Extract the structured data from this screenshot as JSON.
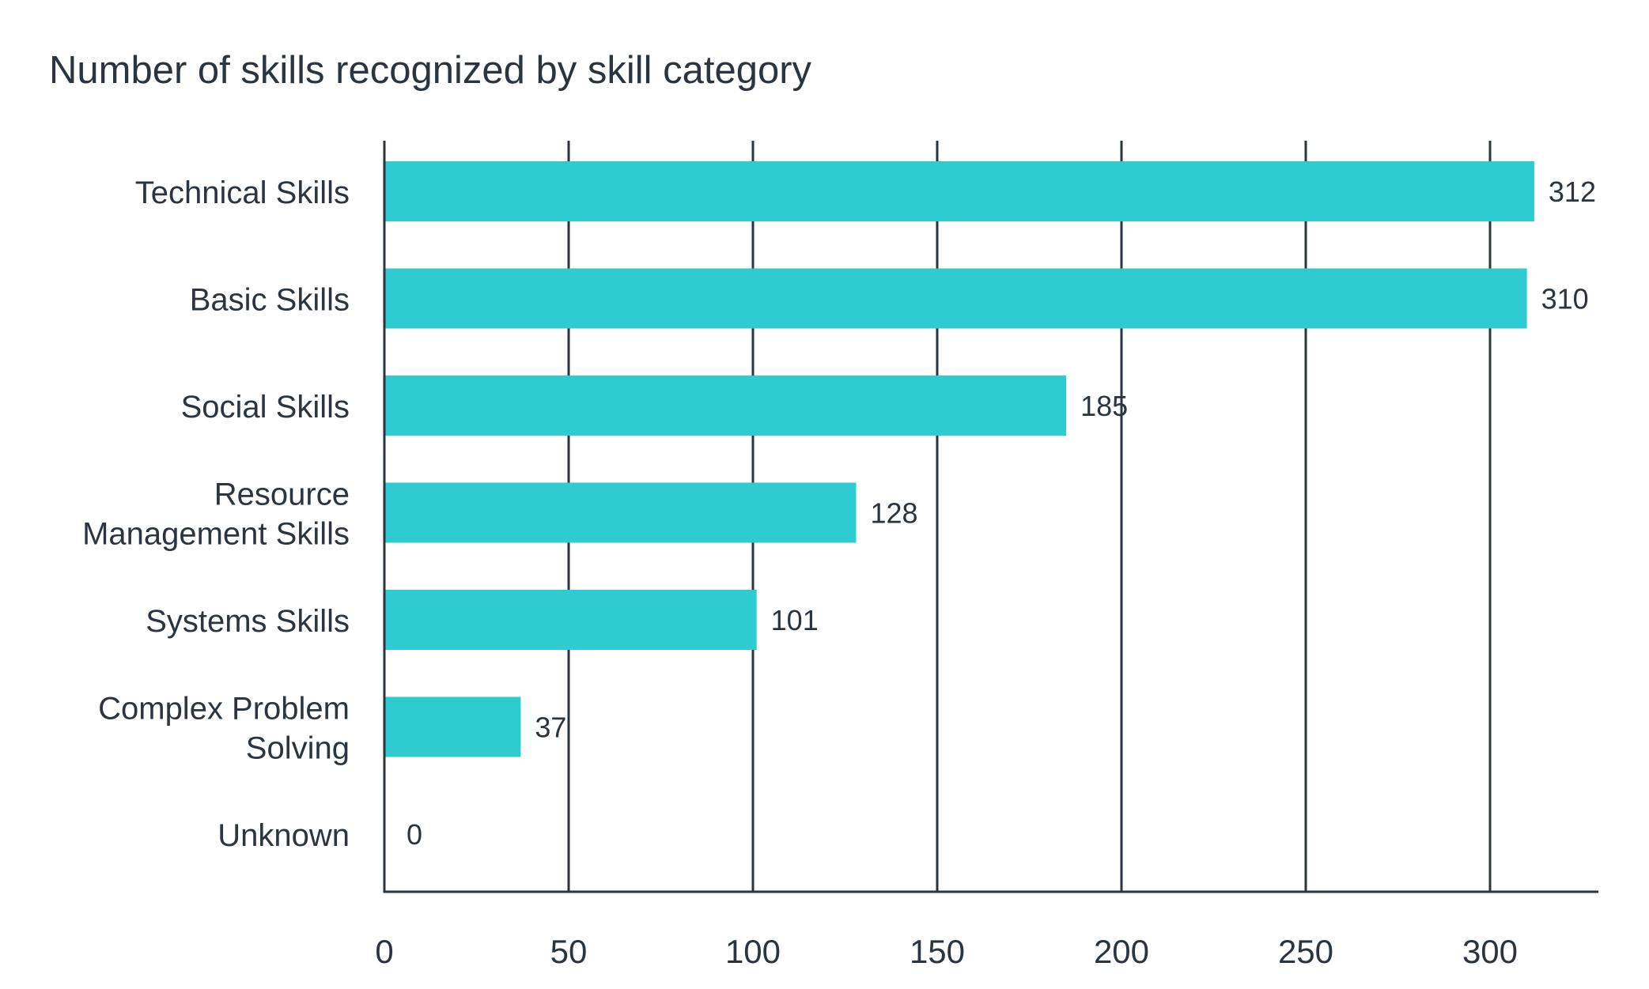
{
  "chart_data": {
    "type": "bar",
    "orientation": "horizontal",
    "title": "Number of skills recognized by skill category",
    "xlabel": "",
    "ylabel": "",
    "categories": [
      [
        "Technical Skills"
      ],
      [
        "Basic Skills"
      ],
      [
        "Social Skills"
      ],
      [
        "Resource",
        "Management Skills"
      ],
      [
        "Systems Skills"
      ],
      [
        "Complex Problem",
        "Solving"
      ],
      [
        "Unknown"
      ]
    ],
    "values": [
      312,
      310,
      185,
      128,
      101,
      37,
      0
    ],
    "data_labels": [
      "312",
      "310",
      "185",
      "128",
      "101",
      "37",
      "0"
    ],
    "xlim": [
      0,
      340
    ],
    "xticks": [
      0,
      50,
      100,
      150,
      200,
      250,
      300
    ],
    "xtick_labels": [
      "0",
      "50",
      "100",
      "150",
      "200",
      "250",
      "300"
    ],
    "grid": "vertical",
    "legend": "none",
    "colors": {
      "bar": "#2ecbd1",
      "text": "#2b3540",
      "grid": "#2b3540"
    }
  }
}
